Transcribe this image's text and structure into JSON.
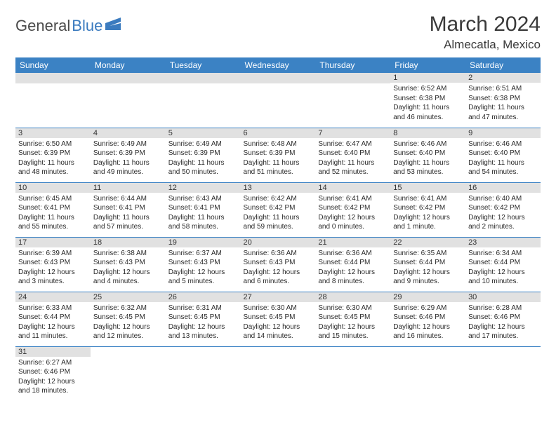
{
  "logo": {
    "part1": "General",
    "part2": "Blue"
  },
  "title": "March 2024",
  "location": "Almecatla, Mexico",
  "colors": {
    "header_bg": "#3b82c4",
    "header_text": "#ffffff",
    "daynum_bg": "#e1e1e1",
    "border": "#3b82c4",
    "logo_gray": "#4a4a4a",
    "logo_blue": "#3b7bbf"
  },
  "weekdays": [
    "Sunday",
    "Monday",
    "Tuesday",
    "Wednesday",
    "Thursday",
    "Friday",
    "Saturday"
  ],
  "weeks": [
    [
      null,
      null,
      null,
      null,
      null,
      {
        "n": "1",
        "sr": "Sunrise: 6:52 AM",
        "ss": "Sunset: 6:38 PM",
        "dl": "Daylight: 11 hours and 46 minutes."
      },
      {
        "n": "2",
        "sr": "Sunrise: 6:51 AM",
        "ss": "Sunset: 6:38 PM",
        "dl": "Daylight: 11 hours and 47 minutes."
      }
    ],
    [
      {
        "n": "3",
        "sr": "Sunrise: 6:50 AM",
        "ss": "Sunset: 6:39 PM",
        "dl": "Daylight: 11 hours and 48 minutes."
      },
      {
        "n": "4",
        "sr": "Sunrise: 6:49 AM",
        "ss": "Sunset: 6:39 PM",
        "dl": "Daylight: 11 hours and 49 minutes."
      },
      {
        "n": "5",
        "sr": "Sunrise: 6:49 AM",
        "ss": "Sunset: 6:39 PM",
        "dl": "Daylight: 11 hours and 50 minutes."
      },
      {
        "n": "6",
        "sr": "Sunrise: 6:48 AM",
        "ss": "Sunset: 6:39 PM",
        "dl": "Daylight: 11 hours and 51 minutes."
      },
      {
        "n": "7",
        "sr": "Sunrise: 6:47 AM",
        "ss": "Sunset: 6:40 PM",
        "dl": "Daylight: 11 hours and 52 minutes."
      },
      {
        "n": "8",
        "sr": "Sunrise: 6:46 AM",
        "ss": "Sunset: 6:40 PM",
        "dl": "Daylight: 11 hours and 53 minutes."
      },
      {
        "n": "9",
        "sr": "Sunrise: 6:46 AM",
        "ss": "Sunset: 6:40 PM",
        "dl": "Daylight: 11 hours and 54 minutes."
      }
    ],
    [
      {
        "n": "10",
        "sr": "Sunrise: 6:45 AM",
        "ss": "Sunset: 6:41 PM",
        "dl": "Daylight: 11 hours and 55 minutes."
      },
      {
        "n": "11",
        "sr": "Sunrise: 6:44 AM",
        "ss": "Sunset: 6:41 PM",
        "dl": "Daylight: 11 hours and 57 minutes."
      },
      {
        "n": "12",
        "sr": "Sunrise: 6:43 AM",
        "ss": "Sunset: 6:41 PM",
        "dl": "Daylight: 11 hours and 58 minutes."
      },
      {
        "n": "13",
        "sr": "Sunrise: 6:42 AM",
        "ss": "Sunset: 6:42 PM",
        "dl": "Daylight: 11 hours and 59 minutes."
      },
      {
        "n": "14",
        "sr": "Sunrise: 6:41 AM",
        "ss": "Sunset: 6:42 PM",
        "dl": "Daylight: 12 hours and 0 minutes."
      },
      {
        "n": "15",
        "sr": "Sunrise: 6:41 AM",
        "ss": "Sunset: 6:42 PM",
        "dl": "Daylight: 12 hours and 1 minute."
      },
      {
        "n": "16",
        "sr": "Sunrise: 6:40 AM",
        "ss": "Sunset: 6:42 PM",
        "dl": "Daylight: 12 hours and 2 minutes."
      }
    ],
    [
      {
        "n": "17",
        "sr": "Sunrise: 6:39 AM",
        "ss": "Sunset: 6:43 PM",
        "dl": "Daylight: 12 hours and 3 minutes."
      },
      {
        "n": "18",
        "sr": "Sunrise: 6:38 AM",
        "ss": "Sunset: 6:43 PM",
        "dl": "Daylight: 12 hours and 4 minutes."
      },
      {
        "n": "19",
        "sr": "Sunrise: 6:37 AM",
        "ss": "Sunset: 6:43 PM",
        "dl": "Daylight: 12 hours and 5 minutes."
      },
      {
        "n": "20",
        "sr": "Sunrise: 6:36 AM",
        "ss": "Sunset: 6:43 PM",
        "dl": "Daylight: 12 hours and 6 minutes."
      },
      {
        "n": "21",
        "sr": "Sunrise: 6:36 AM",
        "ss": "Sunset: 6:44 PM",
        "dl": "Daylight: 12 hours and 8 minutes."
      },
      {
        "n": "22",
        "sr": "Sunrise: 6:35 AM",
        "ss": "Sunset: 6:44 PM",
        "dl": "Daylight: 12 hours and 9 minutes."
      },
      {
        "n": "23",
        "sr": "Sunrise: 6:34 AM",
        "ss": "Sunset: 6:44 PM",
        "dl": "Daylight: 12 hours and 10 minutes."
      }
    ],
    [
      {
        "n": "24",
        "sr": "Sunrise: 6:33 AM",
        "ss": "Sunset: 6:44 PM",
        "dl": "Daylight: 12 hours and 11 minutes."
      },
      {
        "n": "25",
        "sr": "Sunrise: 6:32 AM",
        "ss": "Sunset: 6:45 PM",
        "dl": "Daylight: 12 hours and 12 minutes."
      },
      {
        "n": "26",
        "sr": "Sunrise: 6:31 AM",
        "ss": "Sunset: 6:45 PM",
        "dl": "Daylight: 12 hours and 13 minutes."
      },
      {
        "n": "27",
        "sr": "Sunrise: 6:30 AM",
        "ss": "Sunset: 6:45 PM",
        "dl": "Daylight: 12 hours and 14 minutes."
      },
      {
        "n": "28",
        "sr": "Sunrise: 6:30 AM",
        "ss": "Sunset: 6:45 PM",
        "dl": "Daylight: 12 hours and 15 minutes."
      },
      {
        "n": "29",
        "sr": "Sunrise: 6:29 AM",
        "ss": "Sunset: 6:46 PM",
        "dl": "Daylight: 12 hours and 16 minutes."
      },
      {
        "n": "30",
        "sr": "Sunrise: 6:28 AM",
        "ss": "Sunset: 6:46 PM",
        "dl": "Daylight: 12 hours and 17 minutes."
      }
    ],
    [
      {
        "n": "31",
        "sr": "Sunrise: 6:27 AM",
        "ss": "Sunset: 6:46 PM",
        "dl": "Daylight: 12 hours and 18 minutes."
      },
      null,
      null,
      null,
      null,
      null,
      null
    ]
  ]
}
